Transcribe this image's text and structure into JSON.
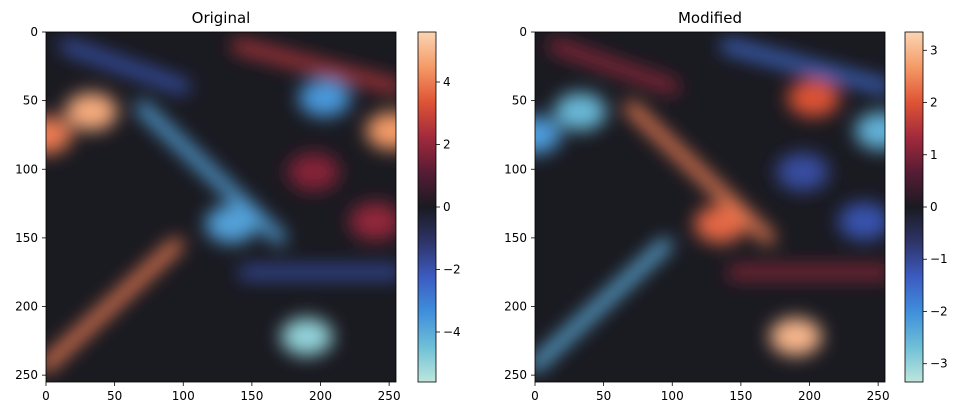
{
  "chart_data": [
    {
      "type": "heatmap",
      "title": "Original",
      "xlim": [
        0,
        255
      ],
      "ylim": [
        255,
        0
      ],
      "x_ticks": [
        0,
        50,
        100,
        150,
        200,
        250
      ],
      "y_ticks": [
        0,
        50,
        100,
        150,
        200,
        250
      ],
      "colormap": "icefire",
      "colorbar": {
        "range": [
          -5.6,
          5.6
        ],
        "ticks": [
          4,
          2,
          0,
          -2,
          -4
        ],
        "tick_labels": [
          "4",
          "2",
          "0",
          "−2",
          "−4"
        ]
      },
      "features": [
        {
          "kind": "vortex",
          "x": 33,
          "y": 58,
          "value": 4.8
        },
        {
          "kind": "vortex",
          "x": 252,
          "y": 72,
          "value": 4.5
        },
        {
          "kind": "vortex",
          "x": 190,
          "y": 222,
          "value": -5.0
        },
        {
          "kind": "vortex",
          "x": 203,
          "y": 48,
          "value": -3.6
        },
        {
          "kind": "vortex",
          "x": 135,
          "y": 140,
          "value": -3.8
        },
        {
          "kind": "vortex",
          "x": 240,
          "y": 138,
          "value": 2.0
        },
        {
          "kind": "vortex",
          "x": 195,
          "y": 102,
          "value": 1.8
        },
        {
          "kind": "vortex",
          "x": 0,
          "y": 75,
          "value": 4.0
        },
        {
          "kind": "filament",
          "from": [
            70,
            55
          ],
          "to": [
            170,
            150
          ],
          "value": -3.8
        },
        {
          "kind": "filament",
          "from": [
            0,
            243
          ],
          "to": [
            95,
            155
          ],
          "value": 4.0
        },
        {
          "kind": "filament",
          "from": [
            15,
            10
          ],
          "to": [
            100,
            40
          ],
          "value": -2.0
        },
        {
          "kind": "filament",
          "from": [
            145,
            175
          ],
          "to": [
            255,
            175
          ],
          "value": -1.8
        },
        {
          "kind": "filament",
          "from": [
            140,
            10
          ],
          "to": [
            255,
            40
          ],
          "value": 2.5
        }
      ]
    },
    {
      "type": "heatmap",
      "title": "Modified",
      "xlim": [
        0,
        255
      ],
      "ylim": [
        255,
        0
      ],
      "x_ticks": [
        0,
        50,
        100,
        150,
        200,
        250
      ],
      "y_ticks": [
        0,
        50,
        100,
        150,
        200,
        250
      ],
      "colormap": "icefire",
      "colorbar": {
        "range": [
          -3.35,
          3.35
        ],
        "ticks": [
          3,
          2,
          1,
          0,
          -1,
          -2,
          -3
        ],
        "tick_labels": [
          "3",
          "2",
          "1",
          "0",
          "−1",
          "−2",
          "−3"
        ]
      },
      "features": [
        {
          "kind": "vortex",
          "x": 33,
          "y": 58,
          "value": -2.6
        },
        {
          "kind": "vortex",
          "x": 252,
          "y": 72,
          "value": -2.5
        },
        {
          "kind": "vortex",
          "x": 190,
          "y": 222,
          "value": 3.0
        },
        {
          "kind": "vortex",
          "x": 203,
          "y": 48,
          "value": 2.0
        },
        {
          "kind": "vortex",
          "x": 135,
          "y": 140,
          "value": 2.2
        },
        {
          "kind": "vortex",
          "x": 240,
          "y": 138,
          "value": -1.2
        },
        {
          "kind": "vortex",
          "x": 195,
          "y": 102,
          "value": -1.1
        },
        {
          "kind": "vortex",
          "x": 0,
          "y": 75,
          "value": -2.2
        },
        {
          "kind": "filament",
          "from": [
            70,
            55
          ],
          "to": [
            170,
            150
          ],
          "value": 2.4
        },
        {
          "kind": "filament",
          "from": [
            0,
            243
          ],
          "to": [
            95,
            155
          ],
          "value": -2.4
        },
        {
          "kind": "filament",
          "from": [
            15,
            10
          ],
          "to": [
            100,
            40
          ],
          "value": 1.2
        },
        {
          "kind": "filament",
          "from": [
            145,
            175
          ],
          "to": [
            255,
            175
          ],
          "value": 1.1
        },
        {
          "kind": "filament",
          "from": [
            140,
            10
          ],
          "to": [
            255,
            40
          ],
          "value": -1.5
        }
      ]
    }
  ]
}
